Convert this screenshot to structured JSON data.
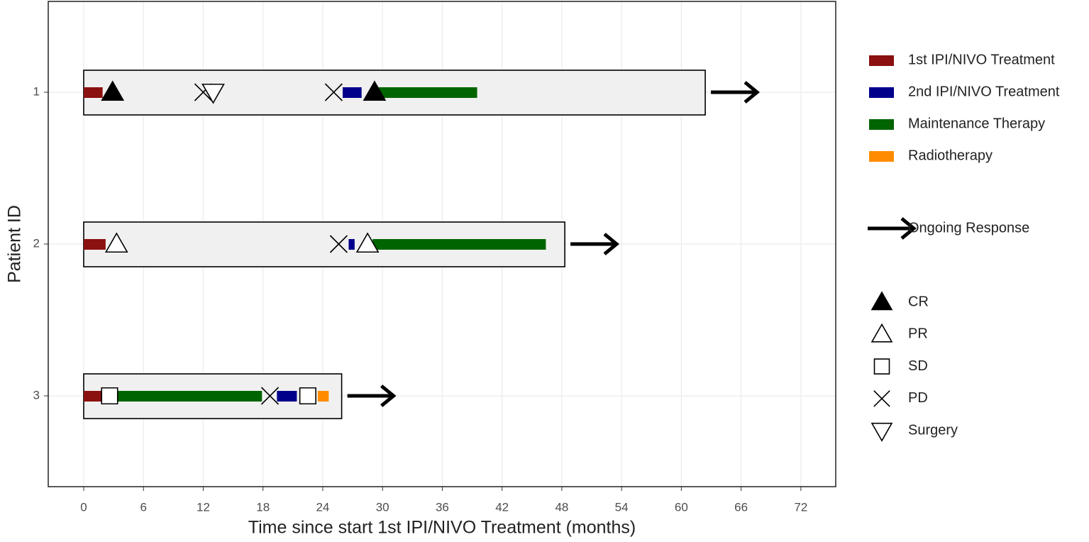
{
  "chart_data": {
    "type": "swimmer",
    "x_label": "Time since start 1st IPI/NIVO Treatment (months)",
    "y_label": "Patient ID",
    "categories": [
      "1",
      "2",
      "3"
    ],
    "durations": [
      62.4,
      48.3,
      25.9
    ],
    "ongoing": [
      true,
      true,
      true
    ],
    "ongoing_label": "Ongoing Response",
    "xlim": [
      -3.56,
      75.5
    ],
    "xticks": [
      0,
      6,
      12,
      18,
      24,
      30,
      36,
      42,
      48,
      54,
      60,
      66,
      72
    ],
    "grid": true,
    "series": [
      {
        "name": "1st IPI/NIVO Treatment",
        "color": "#8b1010",
        "start": [
          0,
          0,
          0
        ],
        "end": [
          1.9,
          2.2,
          1.9
        ]
      },
      {
        "name": "2nd IPI/NIVO Treatment",
        "color": "#00008b",
        "start": [
          26.0,
          26.6,
          19.4
        ],
        "end": [
          27.9,
          27.2,
          21.4
        ]
      },
      {
        "name": "Maintenance Therapy",
        "color": "#006400",
        "start": [
          29.6,
          29.0,
          3.0
        ],
        "end": [
          39.5,
          46.4,
          17.9
        ]
      },
      {
        "name": "Radiotherapy",
        "color": "#ff8c00",
        "start": [
          null,
          null,
          23.5
        ],
        "end": [
          null,
          null,
          24.6
        ]
      }
    ],
    "events": [
      {
        "name": "CR",
        "shape": "triangle-filled",
        "x": [
          [
            2.9,
            29.2
          ],
          [],
          []
        ]
      },
      {
        "name": "PR",
        "shape": "triangle-open",
        "x": [
          [],
          [
            3.3,
            28.5
          ],
          []
        ]
      },
      {
        "name": "SD",
        "shape": "square",
        "x": [
          [],
          [],
          [
            2.6,
            22.5
          ]
        ]
      },
      {
        "name": "PD",
        "shape": "cross",
        "x": [
          [
            12.0,
            25.1
          ],
          [
            25.6
          ],
          [
            18.7
          ]
        ]
      },
      {
        "name": "Surgery",
        "shape": "triangle-down",
        "x": [
          [
            13.0
          ],
          [],
          []
        ]
      }
    ]
  }
}
